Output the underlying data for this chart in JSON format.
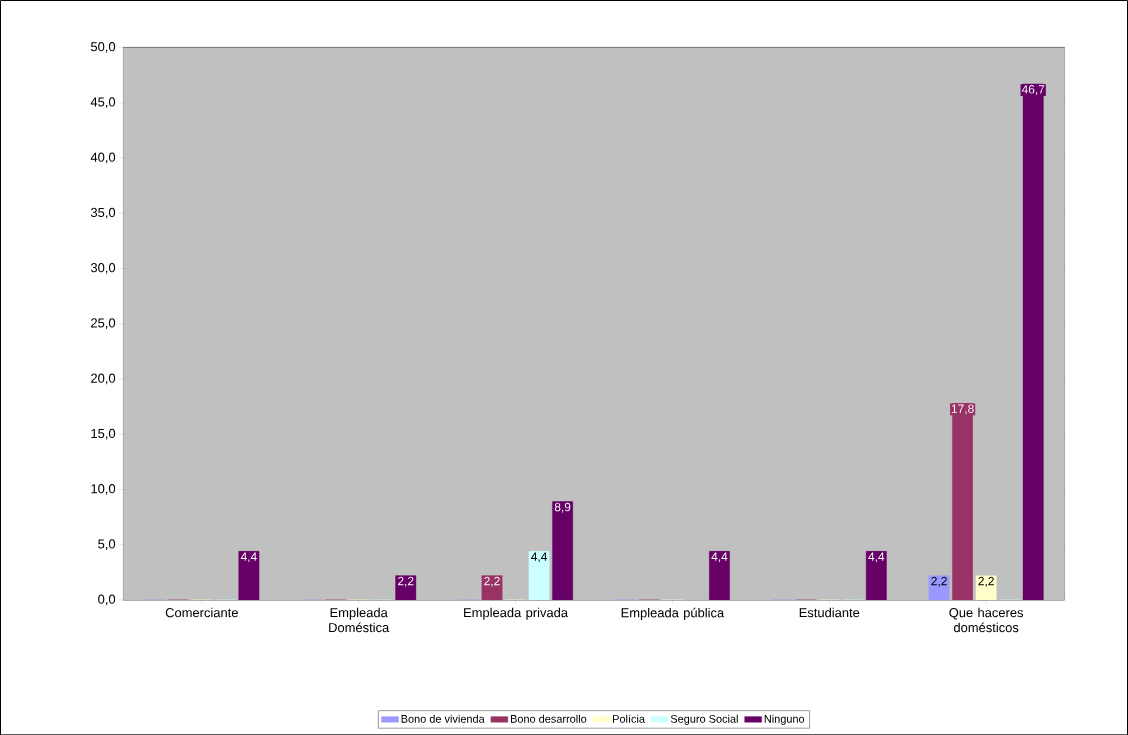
{
  "chart_data": {
    "type": "bar",
    "categories": [
      "Comerciante",
      "Empleada Doméstica",
      "Empleada privada",
      "Empleada pública",
      "Estudiante",
      "Que haceres domésticos"
    ],
    "series": [
      {
        "name": "Bono de vivienda",
        "color": "#9999ff",
        "values": [
          0,
          0,
          0,
          0,
          0,
          2.2
        ],
        "value_labels": [
          null,
          null,
          null,
          null,
          null,
          "2,2"
        ]
      },
      {
        "name": "Bono desarrollo",
        "color": "#993366",
        "values": [
          0,
          0,
          2.2,
          0,
          0,
          17.8
        ],
        "value_labels": [
          null,
          null,
          "2,2",
          null,
          null,
          "17,8"
        ]
      },
      {
        "name": "Polícia",
        "color": "#ffffcc",
        "values": [
          0,
          0,
          0,
          0,
          0,
          2.2
        ],
        "value_labels": [
          null,
          null,
          null,
          null,
          null,
          "2,2"
        ]
      },
      {
        "name": "Seguro Social",
        "color": "#ccffff",
        "values": [
          0,
          0,
          4.4,
          null,
          0,
          0
        ],
        "value_labels": [
          null,
          null,
          "4,4",
          null,
          null,
          null
        ]
      },
      {
        "name": "Ninguno",
        "color": "#660066",
        "values": [
          4.4,
          2.2,
          8.9,
          4.4,
          4.4,
          46.7
        ],
        "value_labels": [
          "4,4",
          "2,2",
          "8,9",
          "4,4",
          "4,4",
          "46,7"
        ]
      }
    ],
    "ylim": [
      0,
      50
    ],
    "yticks": [
      {
        "value": 0,
        "label": "0,0"
      },
      {
        "value": 5,
        "label": "5,0"
      },
      {
        "value": 10,
        "label": "10,0"
      },
      {
        "value": 15,
        "label": "15,0"
      },
      {
        "value": 20,
        "label": "20,0"
      },
      {
        "value": 25,
        "label": "25,0"
      },
      {
        "value": 30,
        "label": "30,0"
      },
      {
        "value": 35,
        "label": "35,0"
      },
      {
        "value": 40,
        "label": "40,0"
      },
      {
        "value": 45,
        "label": "45,0"
      },
      {
        "value": 50,
        "label": "50,0"
      }
    ],
    "grid": "y",
    "legend": "bottom"
  }
}
